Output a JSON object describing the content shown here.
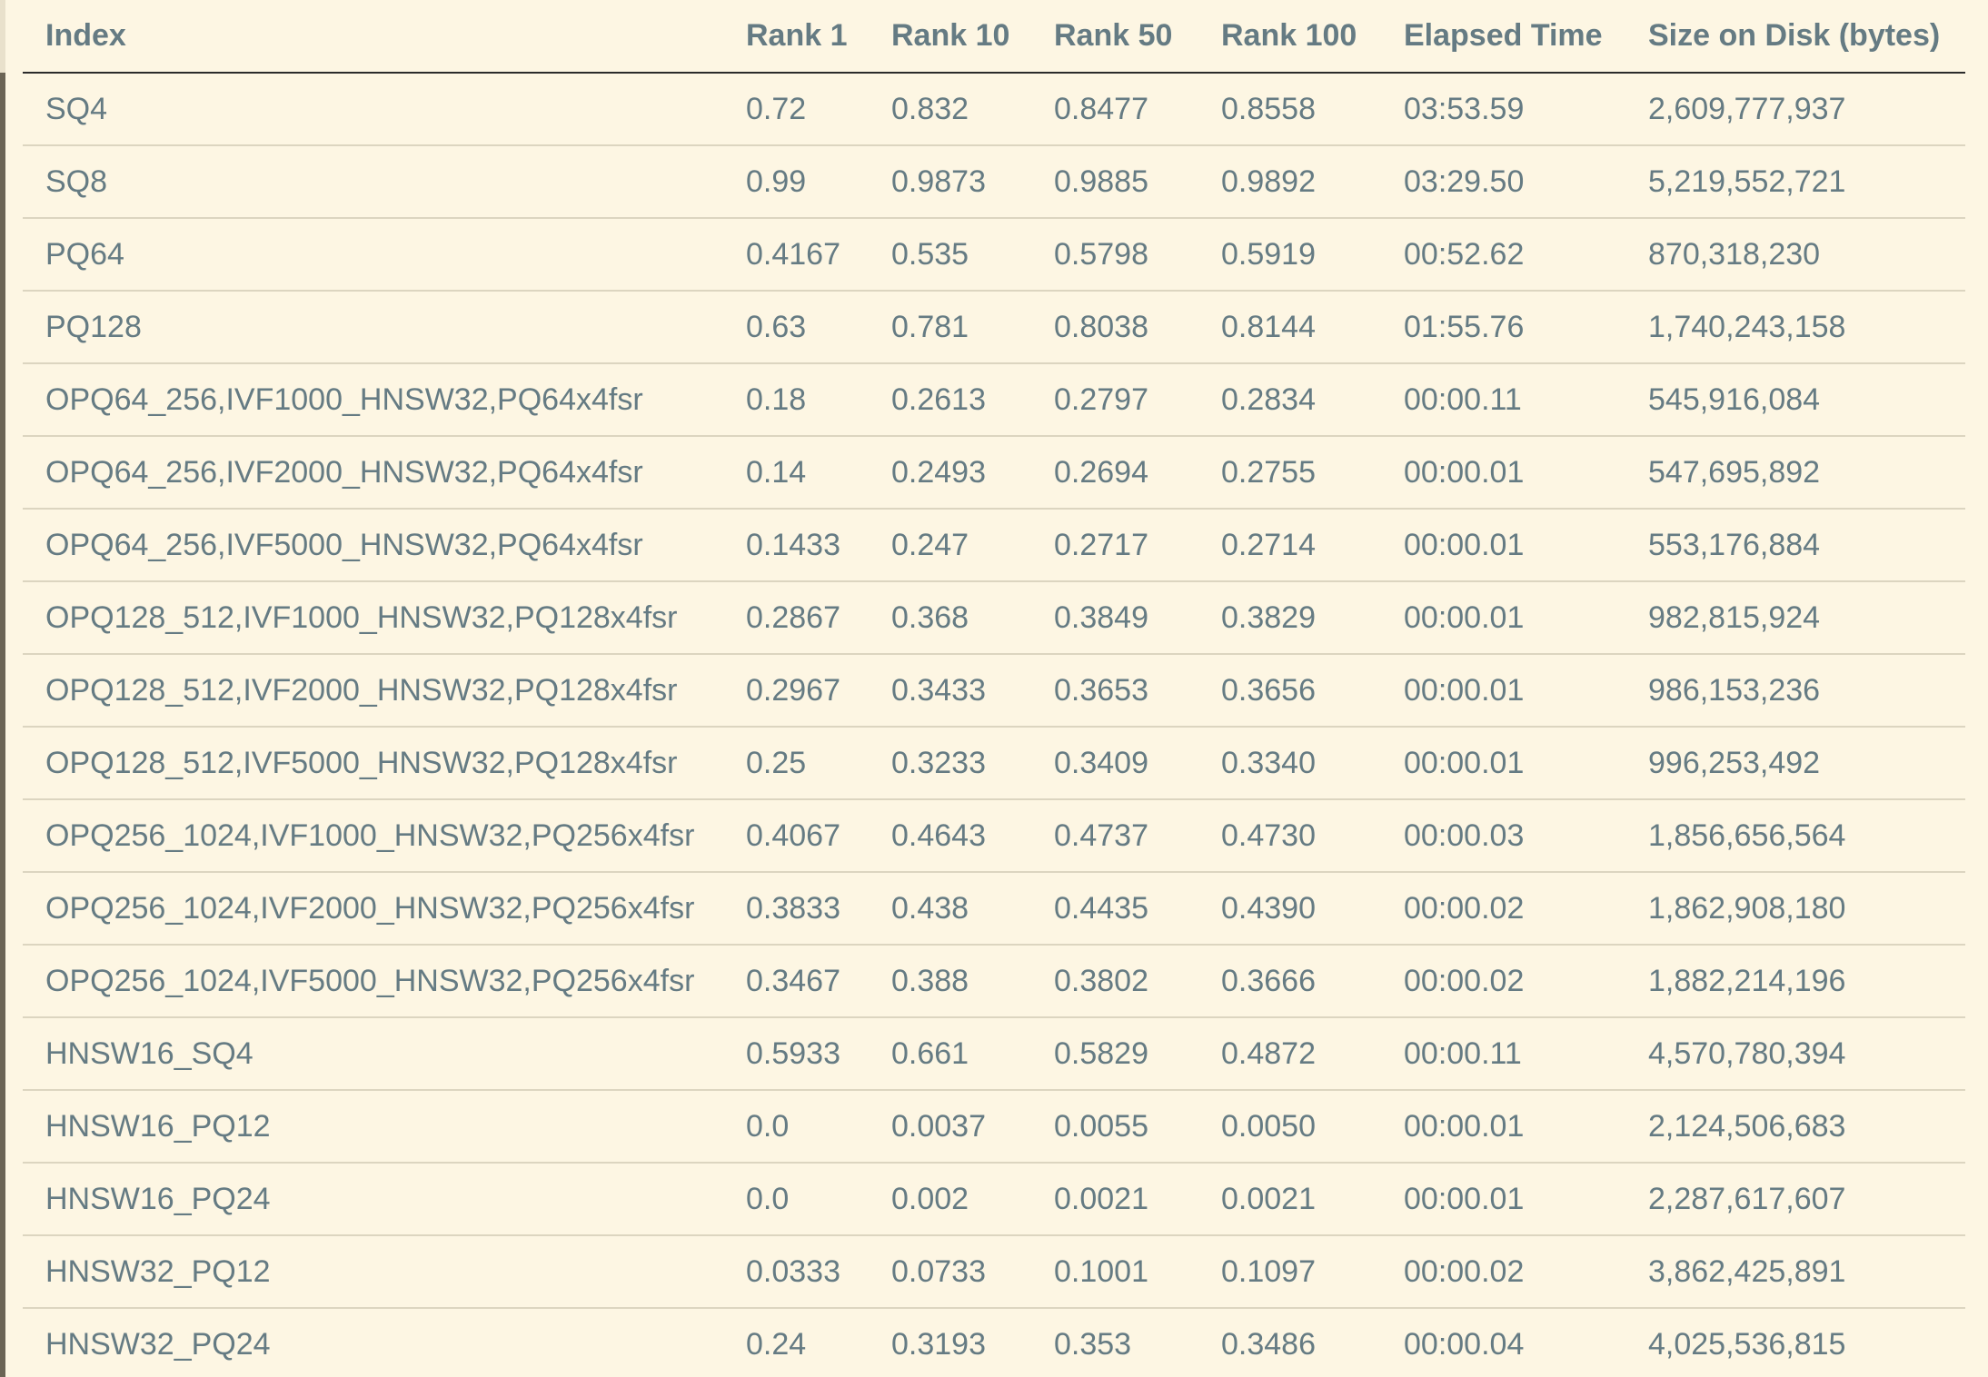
{
  "table": {
    "headers": [
      "Index",
      "Rank 1",
      "Rank 10",
      "Rank 50",
      "Rank 100",
      "Elapsed Time",
      "Size on Disk (bytes)"
    ],
    "rows": [
      [
        "SQ4",
        "0.72",
        "0.832",
        "0.8477",
        "0.8558",
        "03:53.59",
        "2,609,777,937"
      ],
      [
        "SQ8",
        "0.99",
        "0.9873",
        "0.9885",
        "0.9892",
        "03:29.50",
        "5,219,552,721"
      ],
      [
        "PQ64",
        "0.4167",
        "0.535",
        "0.5798",
        "0.5919",
        "00:52.62",
        "870,318,230"
      ],
      [
        "PQ128",
        "0.63",
        "0.781",
        "0.8038",
        "0.8144",
        "01:55.76",
        "1,740,243,158"
      ],
      [
        "OPQ64_256,IVF1000_HNSW32,PQ64x4fsr",
        "0.18",
        "0.2613",
        "0.2797",
        "0.2834",
        "00:00.11",
        "545,916,084"
      ],
      [
        "OPQ64_256,IVF2000_HNSW32,PQ64x4fsr",
        "0.14",
        "0.2493",
        "0.2694",
        "0.2755",
        "00:00.01",
        "547,695,892"
      ],
      [
        "OPQ64_256,IVF5000_HNSW32,PQ64x4fsr",
        "0.1433",
        "0.247",
        "0.2717",
        "0.2714",
        "00:00.01",
        "553,176,884"
      ],
      [
        "OPQ128_512,IVF1000_HNSW32,PQ128x4fsr",
        "0.2867",
        "0.368",
        "0.3849",
        "0.3829",
        "00:00.01",
        "982,815,924"
      ],
      [
        "OPQ128_512,IVF2000_HNSW32,PQ128x4fsr",
        "0.2967",
        "0.3433",
        "0.3653",
        "0.3656",
        "00:00.01",
        "986,153,236"
      ],
      [
        "OPQ128_512,IVF5000_HNSW32,PQ128x4fsr",
        "0.25",
        "0.3233",
        "0.3409",
        "0.3340",
        "00:00.01",
        "996,253,492"
      ],
      [
        "OPQ256_1024,IVF1000_HNSW32,PQ256x4fsr",
        "0.4067",
        "0.4643",
        "0.4737",
        "0.4730",
        "00:00.03",
        "1,856,656,564"
      ],
      [
        "OPQ256_1024,IVF2000_HNSW32,PQ256x4fsr",
        "0.3833",
        "0.438",
        "0.4435",
        "0.4390",
        "00:00.02",
        "1,862,908,180"
      ],
      [
        "OPQ256_1024,IVF5000_HNSW32,PQ256x4fsr",
        "0.3467",
        "0.388",
        "0.3802",
        "0.3666",
        "00:00.02",
        "1,882,214,196"
      ],
      [
        "HNSW16_SQ4",
        "0.5933",
        "0.661",
        "0.5829",
        "0.4872",
        "00:00.11",
        "4,570,780,394"
      ],
      [
        "HNSW16_PQ12",
        "0.0",
        "0.0037",
        "0.0055",
        "0.0050",
        "00:00.01",
        "2,124,506,683"
      ],
      [
        "HNSW16_PQ24",
        "0.0",
        "0.002",
        "0.0021",
        "0.0021",
        "00:00.01",
        "2,287,617,607"
      ],
      [
        "HNSW32_PQ12",
        "0.0333",
        "0.0733",
        "0.1001",
        "0.1097",
        "00:00.02",
        "3,862,425,891"
      ],
      [
        "HNSW32_PQ24",
        "0.24",
        "0.3193",
        "0.353",
        "0.3486",
        "00:00.04",
        "4,025,536,815"
      ]
    ]
  }
}
